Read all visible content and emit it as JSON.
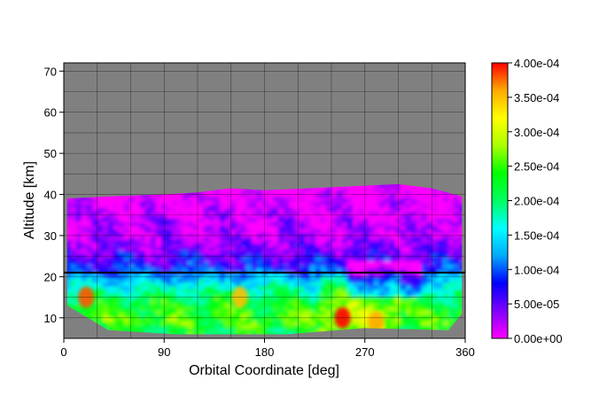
{
  "chart_data": {
    "type": "heatmap",
    "xlabel": "Orbital Coordinate [deg]",
    "ylabel": "Altitude [km]",
    "xlim": [
      0,
      360
    ],
    "ylim": [
      5,
      72
    ],
    "x_ticks": [
      "0",
      "90",
      "180",
      "270",
      "360"
    ],
    "x_tick_values": [
      0,
      90,
      180,
      270,
      360
    ],
    "y_ticks": [
      "10",
      "20",
      "30",
      "40",
      "50",
      "60",
      "70"
    ],
    "y_tick_values": [
      10,
      20,
      30,
      40,
      50,
      60,
      70
    ],
    "grid": true,
    "background_color": "#808080",
    "reference_line": {
      "altitude": 21
    },
    "colorbar": {
      "range": [
        0,
        0.0004
      ],
      "tick_labels": [
        "0.00e+00",
        "5.00e-05",
        "1.00e-04",
        "1.50e-04",
        "2.00e-04",
        "2.50e-04",
        "3.00e-04",
        "3.50e-04",
        "4.00e-04"
      ],
      "tick_values": [
        0,
        5e-05,
        0.0001,
        0.00015,
        0.0002,
        0.00025,
        0.0003,
        0.00035,
        0.0004
      ],
      "colormap": [
        "#ff00ff",
        "#8000ff",
        "#0000ff",
        "#00aaff",
        "#00ffff",
        "#00ff60",
        "#00ff00",
        "#aaff00",
        "#ffff00",
        "#ffaa00",
        "#ff0000"
      ]
    },
    "data_extent": {
      "x": [
        3,
        357
      ],
      "top_altitude": [
        [
          3,
          39
        ],
        [
          40,
          39.5
        ],
        [
          90,
          40
        ],
        [
          120,
          40.5
        ],
        [
          150,
          41.5
        ],
        [
          180,
          41
        ],
        [
          220,
          41.5
        ],
        [
          260,
          42
        ],
        [
          300,
          42.5
        ],
        [
          330,
          41.5
        ],
        [
          357,
          39.5
        ]
      ],
      "bottom_altitude": [
        [
          3,
          13
        ],
        [
          40,
          7
        ],
        [
          100,
          6
        ],
        [
          200,
          6
        ],
        [
          270,
          7.5
        ],
        [
          345,
          7
        ],
        [
          357,
          11
        ]
      ]
    },
    "field_rows": [
      {
        "altitude": 7,
        "value": 0.00022
      },
      {
        "altitude": 9,
        "value": 0.00025
      },
      {
        "altitude": 11,
        "value": 0.00024
      },
      {
        "altitude": 13,
        "value": 0.00023
      },
      {
        "altitude": 15,
        "value": 0.00021
      },
      {
        "altitude": 17,
        "value": 0.00018
      },
      {
        "altitude": 19,
        "value": 0.00014
      },
      {
        "altitude": 21,
        "value": 0.0001
      },
      {
        "altitude": 23,
        "value": 7e-05
      },
      {
        "altitude": 25,
        "value": 6e-05
      },
      {
        "altitude": 27,
        "value": 4e-05
      },
      {
        "altitude": 29,
        "value": 3e-05
      },
      {
        "altitude": 31,
        "value": 2e-05
      },
      {
        "altitude": 33,
        "value": 2e-05
      },
      {
        "altitude": 35,
        "value": 1e-05
      },
      {
        "altitude": 37,
        "value": 1e-05
      },
      {
        "altitude": 39,
        "value": 0.0
      }
    ],
    "hotspots": [
      {
        "x": 20,
        "altitude": 15,
        "value": 0.00038
      },
      {
        "x": 158,
        "altitude": 15,
        "value": 0.00035
      },
      {
        "x": 250,
        "altitude": 10,
        "value": 0.0004
      },
      {
        "x": 280,
        "altitude": 9,
        "value": 0.00036
      }
    ]
  }
}
